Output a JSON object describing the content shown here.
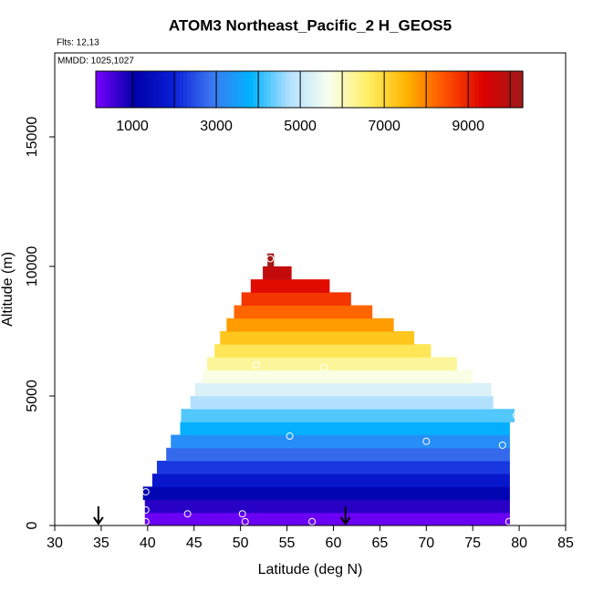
{
  "chart_data": {
    "type": "curtain",
    "title": "ATOM3 Northeast_Pacific_2 H_GEOS5",
    "annotations": [
      "Flts: 12,13",
      "MMDD: 1025,1027"
    ],
    "x_label": "Latitude (deg N)",
    "y_label": "Altitude (m)",
    "xlim": [
      30,
      85
    ],
    "xticks": [
      30,
      35,
      40,
      45,
      50,
      55,
      60,
      65,
      70,
      75,
      80,
      85
    ],
    "ylim": [
      0,
      18240
    ],
    "yticks": [
      0,
      5000,
      10000,
      15000
    ],
    "cells": {
      "alt_edges": [
        0,
        500,
        1000,
        1500,
        2000,
        2500,
        3000,
        3500,
        4000,
        4500,
        5000,
        5500,
        6000,
        6500,
        7000,
        7500,
        8000,
        8500,
        9000,
        9500,
        10000,
        10500
      ],
      "lat_start": [
        39.7,
        39.7,
        39.5,
        40.5,
        41,
        42,
        42.5,
        43.5,
        43.6,
        44.6,
        45.1,
        45.9,
        46.4,
        47.2,
        47.8,
        48.5,
        49.3,
        50.1,
        51.1,
        52.4,
        52.9
      ],
      "lat_end": [
        79,
        79,
        79,
        79,
        79,
        79,
        79,
        79,
        79.5,
        77.2,
        77,
        75,
        73.3,
        70.5,
        68.7,
        66.5,
        64.2,
        61.9,
        59.6,
        55.5,
        53.6
      ],
      "values": [
        250,
        750,
        1250,
        1750,
        2250,
        2750,
        3250,
        3750,
        4250,
        4750,
        5250,
        5750,
        6250,
        6750,
        7250,
        7750,
        8250,
        8750,
        9250,
        9750,
        10250
      ]
    },
    "points": {
      "x": [
        39.8,
        39.8,
        39.8,
        44.3,
        50.2,
        50.5,
        57.7,
        78.9,
        51.7,
        59,
        53.2,
        55.3,
        70,
        78.2,
        79.7
      ],
      "y": [
        1300,
        600,
        150,
        450,
        450,
        150,
        150,
        150,
        6200,
        6100,
        10300,
        3450,
        3250,
        3100,
        4250
      ],
      "color": "#ffffff"
    },
    "arrows_x": [
      34.7,
      61.3
    ],
    "colorbar": {
      "zlim": [
        130,
        10300
      ],
      "ticks": [
        1000,
        3000,
        5000,
        7000,
        9000
      ],
      "minor_ticks": [
        2000,
        4000,
        6000,
        8000,
        10000
      ],
      "colors": [
        "#7a00ff",
        "#0000a8",
        "#0a1ed8",
        "#3c78f0",
        "#00b4ff",
        "#b4e0ff",
        "#f8fff0",
        "#fff066",
        "#ffb400",
        "#ff5000",
        "#dc0000",
        "#a01a1a"
      ]
    }
  }
}
